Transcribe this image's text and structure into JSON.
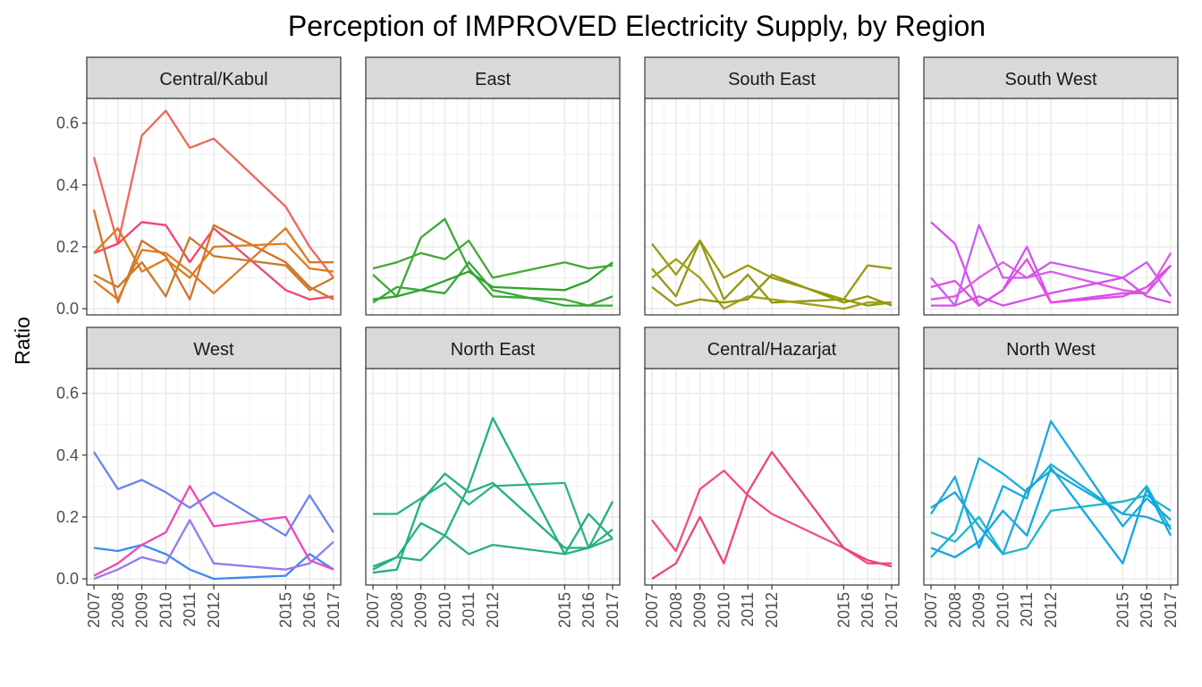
{
  "chart_data": {
    "type": "line",
    "layout": "facet-grid-2x4",
    "title": "Perception of IMPROVED Electricity Supply, by Region",
    "xlabel": "",
    "ylabel": "Ratio",
    "ylim": [
      -0.02,
      0.68
    ],
    "yticks": [
      0.0,
      0.2,
      0.4,
      0.6
    ],
    "yticklabels": [
      "0.0",
      "0.2",
      "0.4",
      "0.6"
    ],
    "x": [
      2007,
      2008,
      2009,
      2010,
      2011,
      2012,
      2015,
      2016,
      2017
    ],
    "xticklabels": [
      "2007",
      "2008",
      "2009",
      "2010",
      "2011",
      "2012",
      "2015",
      "2016",
      "2017"
    ],
    "xlim": [
      2006.7,
      2017.3
    ],
    "grid": true,
    "legend": "none",
    "panels": [
      {
        "region": "Central/Kabul",
        "series": [
          {
            "color": "#f0655b",
            "values": [
              0.49,
              0.21,
              0.56,
              0.64,
              0.52,
              0.55,
              0.33,
              0.2,
              0.1
            ]
          },
          {
            "color": "#f0466e",
            "values": [
              0.18,
              0.21,
              0.28,
              0.27,
              0.15,
              0.26,
              0.06,
              0.03,
              0.04
            ]
          },
          {
            "color": "#d4722c",
            "values": [
              0.32,
              0.02,
              0.22,
              0.17,
              0.03,
              0.27,
              0.15,
              0.07,
              0.03
            ]
          },
          {
            "color": "#dc7a22",
            "values": [
              0.09,
              0.03,
              0.19,
              0.18,
              0.12,
              0.05,
              0.26,
              0.15,
              0.15
            ]
          },
          {
            "color": "#c97a2a",
            "values": [
              0.11,
              0.07,
              0.15,
              0.04,
              0.23,
              0.17,
              0.14,
              0.06,
              0.1
            ]
          },
          {
            "color": "#e07a1a",
            "values": [
              0.18,
              0.26,
              0.12,
              0.16,
              0.1,
              0.2,
              0.21,
              0.13,
              0.12
            ]
          }
        ]
      },
      {
        "region": "East",
        "series": [
          {
            "color": "#3aaa35",
            "values": [
              0.11,
              0.04,
              0.23,
              0.29,
              0.13,
              0.04,
              0.03,
              0.01,
              0.01
            ]
          },
          {
            "color": "#2ea42a",
            "values": [
              0.03,
              0.04,
              0.06,
              0.09,
              0.12,
              0.07,
              0.06,
              0.09,
              0.15
            ]
          },
          {
            "color": "#41ab2e",
            "values": [
              0.13,
              0.15,
              0.18,
              0.16,
              0.22,
              0.1,
              0.15,
              0.13,
              0.14
            ]
          },
          {
            "color": "#35a83a",
            "values": [
              0.02,
              0.07,
              0.06,
              0.05,
              0.15,
              0.06,
              0.01,
              0.01,
              0.04
            ]
          }
        ]
      },
      {
        "region": "South East",
        "series": [
          {
            "color": "#9a9a10",
            "values": [
              0.21,
              0.11,
              0.22,
              0.1,
              0.14,
              0.1,
              0.03,
              0.14,
              0.13
            ]
          },
          {
            "color": "#8f9a10",
            "values": [
              0.13,
              0.04,
              0.22,
              0.03,
              0.11,
              0.02,
              0.03,
              0.01,
              0.02
            ]
          },
          {
            "color": "#a0a015",
            "values": [
              0.1,
              0.16,
              0.1,
              0.0,
              0.04,
              0.03,
              0.0,
              0.02,
              0.02
            ]
          },
          {
            "color": "#94960c",
            "values": [
              0.07,
              0.01,
              0.03,
              0.02,
              0.03,
              0.11,
              0.02,
              0.04,
              0.01
            ]
          }
        ]
      },
      {
        "region": "South West",
        "series": [
          {
            "color": "#d64ef2",
            "values": [
              0.28,
              0.21,
              0.01,
              0.06,
              0.2,
              0.02,
              0.05,
              0.05,
              0.14
            ]
          },
          {
            "color": "#c75df0",
            "values": [
              0.1,
              0.01,
              0.27,
              0.1,
              0.1,
              0.15,
              0.1,
              0.15,
              0.04
            ]
          },
          {
            "color": "#e05ae8",
            "values": [
              0.03,
              0.04,
              0.1,
              0.15,
              0.1,
              0.12,
              0.06,
              0.05,
              0.18
            ]
          },
          {
            "color": "#cf52e6",
            "values": [
              0.01,
              0.01,
              0.04,
              0.01,
              0.03,
              0.05,
              0.1,
              0.04,
              0.02
            ]
          },
          {
            "color": "#e24ddf",
            "values": [
              0.07,
              0.09,
              0.01,
              0.06,
              0.16,
              0.02,
              0.04,
              0.07,
              0.14
            ]
          }
        ]
      },
      {
        "region": "West",
        "series": [
          {
            "color": "#6a84f0",
            "values": [
              0.41,
              0.29,
              0.32,
              0.28,
              0.23,
              0.28,
              0.14,
              0.27,
              0.15
            ]
          },
          {
            "color": "#3b8bf0",
            "values": [
              0.1,
              0.09,
              0.11,
              0.08,
              0.03,
              0.0,
              0.01,
              0.08,
              0.03
            ]
          },
          {
            "color": "#f048b8",
            "values": [
              0.01,
              0.05,
              0.11,
              0.15,
              0.3,
              0.17,
              0.2,
              0.06,
              0.03
            ]
          },
          {
            "color": "#9a78f0",
            "values": [
              0.0,
              0.03,
              0.07,
              0.05,
              0.19,
              0.05,
              0.03,
              0.05,
              0.12
            ]
          }
        ]
      },
      {
        "region": "North East",
        "series": [
          {
            "color": "#2bb57c",
            "values": [
              0.21,
              0.21,
              0.26,
              0.31,
              0.24,
              0.3,
              0.31,
              0.1,
              0.16
            ]
          },
          {
            "color": "#1fb083",
            "values": [
              0.03,
              0.07,
              0.18,
              0.14,
              0.3,
              0.52,
              0.08,
              0.21,
              0.13
            ]
          },
          {
            "color": "#22b27a",
            "values": [
              0.02,
              0.03,
              0.25,
              0.34,
              0.28,
              0.31,
              0.1,
              0.1,
              0.25
            ]
          },
          {
            "color": "#2aaf86",
            "values": [
              0.04,
              0.07,
              0.06,
              0.14,
              0.08,
              0.11,
              0.08,
              0.1,
              0.13
            ]
          }
        ]
      },
      {
        "region": "Central/Hazarjat",
        "series": [
          {
            "color": "#f24b8c",
            "values": [
              0.19,
              0.09,
              0.29,
              0.35,
              0.27,
              0.21,
              0.1,
              0.05,
              0.05
            ]
          },
          {
            "color": "#ec4677",
            "values": [
              0.0,
              0.05,
              0.2,
              0.05,
              0.28,
              0.41,
              0.1,
              0.06,
              0.04
            ]
          }
        ]
      },
      {
        "region": "North West",
        "series": [
          {
            "color": "#17b0d6",
            "values": [
              0.07,
              0.15,
              0.39,
              0.34,
              0.28,
              0.37,
              0.21,
              0.3,
              0.16
            ]
          },
          {
            "color": "#1aa8e0",
            "values": [
              0.21,
              0.33,
              0.1,
              0.3,
              0.26,
              0.51,
              0.17,
              0.26,
              0.19
            ]
          },
          {
            "color": "#20b6c8",
            "values": [
              0.15,
              0.12,
              0.2,
              0.08,
              0.1,
              0.22,
              0.25,
              0.27,
              0.22
            ]
          },
          {
            "color": "#0ea7e8",
            "values": [
              0.1,
              0.07,
              0.12,
              0.22,
              0.14,
              0.36,
              0.05,
              0.29,
              0.14
            ]
          },
          {
            "color": "#19a9d8",
            "values": [
              0.23,
              0.28,
              0.17,
              0.08,
              0.29,
              0.35,
              0.21,
              0.2,
              0.17
            ]
          }
        ]
      }
    ]
  }
}
